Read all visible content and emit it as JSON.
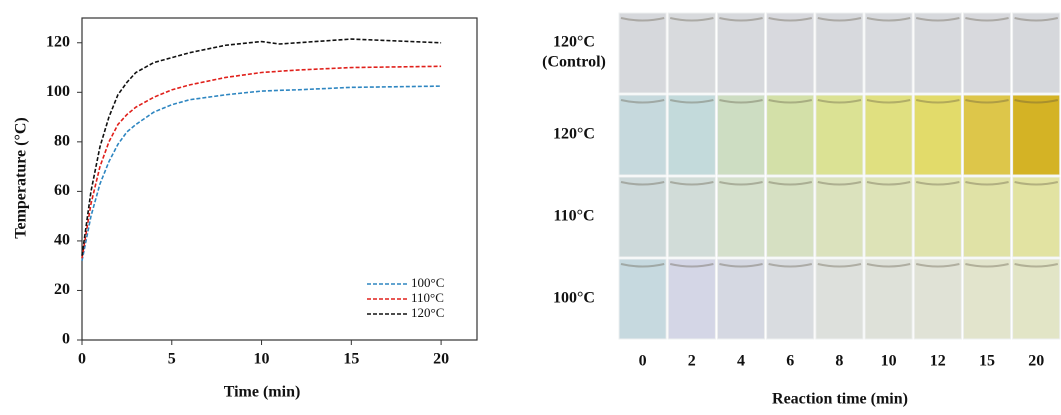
{
  "chart_data": {
    "type": "line",
    "xlabel": "Time (min)",
    "ylabel": "Temperature (°C)",
    "x": [
      0,
      0.5,
      1,
      1.5,
      2,
      2.5,
      3,
      4,
      5,
      6,
      8,
      10,
      11,
      12,
      15,
      20
    ],
    "series": [
      {
        "name": "100°C",
        "color": "#2e86c1",
        "values": [
          32,
          50,
          63,
          72,
          79,
          84,
          87,
          92,
          95,
          97,
          99,
          100.5,
          100.8,
          101,
          102,
          102.5
        ]
      },
      {
        "name": "110°C",
        "color": "#e0201b",
        "values": [
          33,
          55,
          70,
          80,
          87,
          91,
          94,
          98,
          101,
          103,
          106,
          108,
          108.5,
          109,
          110,
          110.5
        ]
      },
      {
        "name": "120°C",
        "color": "#111111",
        "values": [
          34,
          60,
          78,
          90,
          99,
          104,
          108,
          112,
          114,
          116,
          119,
          120.5,
          119.5,
          120,
          121.5,
          120
        ]
      }
    ],
    "xlim": [
      0,
      22
    ],
    "ylim": [
      0,
      130
    ],
    "xticks": [
      0,
      5,
      10,
      15,
      20
    ],
    "yticks": [
      0,
      20,
      40,
      60,
      80,
      100,
      120
    ],
    "legend": "lower right",
    "dashed": true
  },
  "photo_grid": {
    "columns": [
      "0",
      "2",
      "4",
      "6",
      "8",
      "10",
      "12",
      "15",
      "20"
    ],
    "xlabel": "Reaction time (min)",
    "rows": [
      {
        "label": [
          "120°C",
          "(Control)"
        ],
        "colors": [
          "#d6d8dc",
          "#d8dadd",
          "#d7d9dd",
          "#d8d9de",
          "#d7d9dd",
          "#d8dade",
          "#d7d9dd",
          "#d8d9dd",
          "#d6d8dc"
        ]
      },
      {
        "label": [
          "120°C"
        ],
        "colors": [
          "#c6d9dd",
          "#c3dadb",
          "#cdddc2",
          "#d3e0a8",
          "#dbe294",
          "#e0e080",
          "#e2db6a",
          "#ddc64a",
          "#d4b325"
        ]
      },
      {
        "label": [
          "110°C"
        ],
        "colors": [
          "#cdd9da",
          "#d1dcd8",
          "#d5e0cc",
          "#d6e0c2",
          "#dbe2bd",
          "#dde3b7",
          "#dfe3ae",
          "#e0e2a6",
          "#e2e3a2"
        ]
      },
      {
        "label": [
          "100°C"
        ],
        "colors": [
          "#c6d9df",
          "#d4d6e6",
          "#d5d8e2",
          "#d9dce0",
          "#dde0dc",
          "#dee1d9",
          "#e0e2d6",
          "#e2e4cc",
          "#e2e5c6"
        ]
      }
    ]
  }
}
